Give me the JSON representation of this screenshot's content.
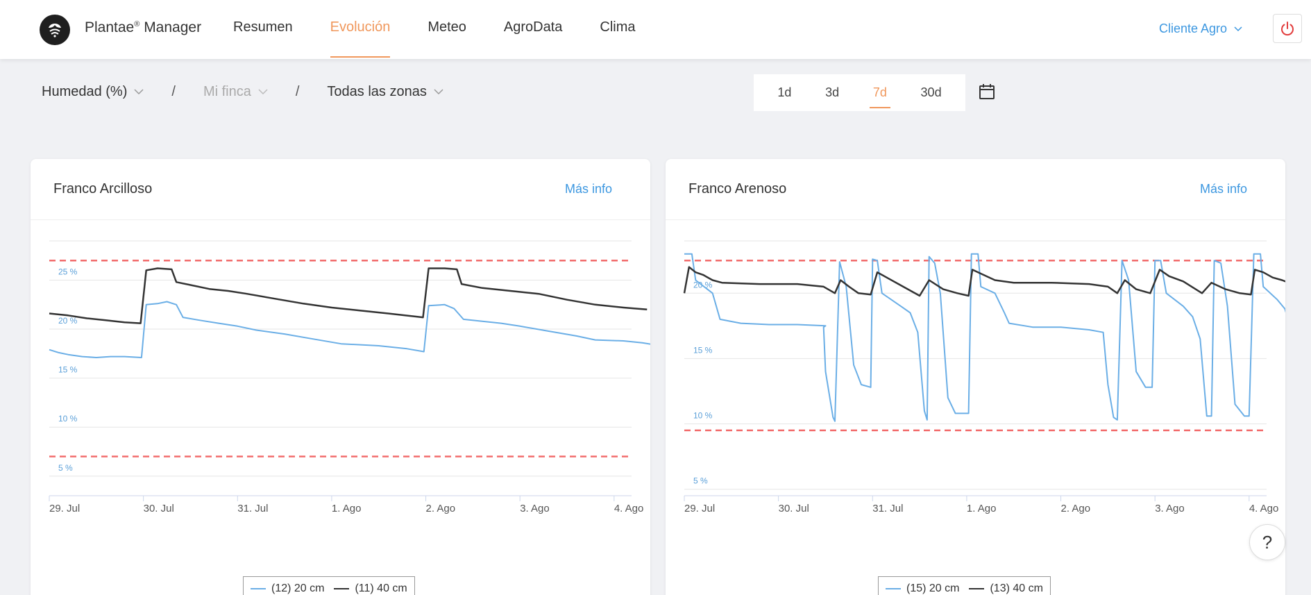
{
  "app": {
    "brand_name": "Plantae",
    "brand_mark": "®",
    "brand_suffix": "Manager",
    "client_label": "Cliente Agro",
    "help_label": "?"
  },
  "nav": {
    "items": [
      {
        "label": "Resumen",
        "active": false
      },
      {
        "label": "Evolución",
        "active": true
      },
      {
        "label": "Meteo",
        "active": false
      },
      {
        "label": "AgroData",
        "active": false
      },
      {
        "label": "Clima",
        "active": false
      }
    ]
  },
  "filters": {
    "metric": "Humedad (%)",
    "farm": "Mi finca",
    "zone": "Todas las zonas",
    "separator": "/"
  },
  "range": {
    "options": [
      "1d",
      "3d",
      "7d",
      "30d"
    ],
    "selected": "7d"
  },
  "colors": {
    "accent": "#f0975b",
    "link": "#3c97e0",
    "threshold": "#f26b6b",
    "series_light": "#6aaee6",
    "series_dark": "#333333"
  },
  "cards": [
    {
      "title": "Franco Arcilloso",
      "more_label": "Más info",
      "legend": [
        "(12) 20 cm",
        "(11) 40 cm"
      ]
    },
    {
      "title": "Franco Arenoso",
      "more_label": "Más info",
      "legend": [
        "(15) 20 cm",
        "(13) 40 cm"
      ]
    }
  ],
  "chart_data": [
    {
      "type": "line",
      "x_ticks": [
        "29. Jul",
        "30. Jul",
        "31. Jul",
        "1. Ago",
        "2. Ago",
        "3. Ago",
        "4. Ago"
      ],
      "y_ticks": [
        "5 %",
        "10 %",
        "15 %",
        "20 %",
        "25 %"
      ],
      "ylim": [
        3,
        29
      ],
      "thresholds": [
        27,
        7
      ],
      "series": [
        {
          "name": "(12) 20 cm",
          "color": "#6aaee6",
          "points": [
            [
              0.0,
              17.9
            ],
            [
              0.1,
              17.6
            ],
            [
              0.2,
              17.4
            ],
            [
              0.35,
              17.2
            ],
            [
              0.5,
              17.1
            ],
            [
              0.65,
              17.2
            ],
            [
              0.8,
              17.2
            ],
            [
              0.98,
              17.1
            ],
            [
              1.03,
              22.5
            ],
            [
              1.15,
              22.6
            ],
            [
              1.25,
              22.8
            ],
            [
              1.35,
              22.5
            ],
            [
              1.42,
              21.2
            ],
            [
              1.6,
              20.9
            ],
            [
              1.8,
              20.6
            ],
            [
              2.0,
              20.3
            ],
            [
              2.2,
              19.9
            ],
            [
              2.5,
              19.5
            ],
            [
              2.8,
              19.0
            ],
            [
              3.1,
              18.5
            ],
            [
              3.5,
              18.3
            ],
            [
              3.8,
              18.0
            ],
            [
              3.98,
              17.7
            ],
            [
              4.03,
              22.4
            ],
            [
              4.2,
              22.5
            ],
            [
              4.3,
              22.1
            ],
            [
              4.4,
              21.0
            ],
            [
              4.6,
              20.8
            ],
            [
              4.8,
              20.6
            ],
            [
              5.0,
              20.3
            ],
            [
              5.3,
              19.8
            ],
            [
              5.6,
              19.3
            ],
            [
              5.8,
              18.9
            ],
            [
              6.1,
              18.8
            ],
            [
              6.3,
              18.6
            ],
            [
              6.5,
              18.3
            ]
          ]
        },
        {
          "name": "(11) 40 cm",
          "color": "#333333",
          "points": [
            [
              0.0,
              21.6
            ],
            [
              0.2,
              21.4
            ],
            [
              0.4,
              21.1
            ],
            [
              0.6,
              20.9
            ],
            [
              0.8,
              20.7
            ],
            [
              0.97,
              20.6
            ],
            [
              1.03,
              26.0
            ],
            [
              1.15,
              26.2
            ],
            [
              1.3,
              26.1
            ],
            [
              1.35,
              24.8
            ],
            [
              1.5,
              24.5
            ],
            [
              1.7,
              24.1
            ],
            [
              1.9,
              23.9
            ],
            [
              2.1,
              23.6
            ],
            [
              2.4,
              23.1
            ],
            [
              2.7,
              22.6
            ],
            [
              3.0,
              22.2
            ],
            [
              3.3,
              21.9
            ],
            [
              3.6,
              21.6
            ],
            [
              3.97,
              21.2
            ],
            [
              4.03,
              26.2
            ],
            [
              4.2,
              26.2
            ],
            [
              4.33,
              26.1
            ],
            [
              4.38,
              24.6
            ],
            [
              4.6,
              24.2
            ],
            [
              4.9,
              23.9
            ],
            [
              5.2,
              23.6
            ],
            [
              5.5,
              23.0
            ],
            [
              5.8,
              22.5
            ],
            [
              6.1,
              22.2
            ],
            [
              6.35,
              22.0
            ]
          ]
        }
      ]
    },
    {
      "type": "line",
      "x_ticks": [
        "29. Jul",
        "30. Jul",
        "31. Jul",
        "1. Ago",
        "2. Ago",
        "3. Ago",
        "4. Ago"
      ],
      "y_ticks": [
        "5 %",
        "10 %",
        "15 %",
        "20 %"
      ],
      "ylim": [
        4.5,
        24
      ],
      "thresholds": [
        22.5,
        9.5
      ],
      "series": [
        {
          "name": "(15) 20 cm",
          "color": "#6aaee6",
          "points": [
            [
              0.0,
              23.0
            ],
            [
              0.08,
              23.0
            ],
            [
              0.12,
              21.0
            ],
            [
              0.3,
              20.0
            ],
            [
              0.38,
              18.0
            ],
            [
              0.6,
              17.7
            ],
            [
              0.9,
              17.6
            ],
            [
              1.2,
              17.6
            ],
            [
              1.5,
              17.5
            ],
            [
              1.48,
              17.4
            ],
            [
              1.5,
              14.0
            ],
            [
              1.58,
              10.5
            ],
            [
              1.6,
              10.2
            ],
            [
              1.65,
              22.4
            ],
            [
              1.72,
              20.5
            ],
            [
              1.8,
              14.5
            ],
            [
              1.88,
              13.0
            ],
            [
              1.98,
              12.8
            ],
            [
              2.0,
              22.6
            ],
            [
              2.05,
              22.5
            ],
            [
              2.1,
              20.0
            ],
            [
              2.3,
              19.0
            ],
            [
              2.4,
              18.5
            ],
            [
              2.48,
              17.0
            ],
            [
              2.55,
              11.0
            ],
            [
              2.58,
              10.3
            ],
            [
              2.6,
              22.8
            ],
            [
              2.66,
              22.3
            ],
            [
              2.72,
              20.0
            ],
            [
              2.8,
              12.0
            ],
            [
              2.88,
              10.8
            ],
            [
              3.02,
              10.8
            ],
            [
              3.05,
              23.0
            ],
            [
              3.12,
              23.0
            ],
            [
              3.15,
              20.5
            ],
            [
              3.3,
              20.0
            ],
            [
              3.4,
              18.5
            ],
            [
              3.45,
              17.7
            ],
            [
              3.7,
              17.4
            ],
            [
              4.0,
              17.4
            ],
            [
              4.3,
              17.2
            ],
            [
              4.45,
              17.0
            ],
            [
              4.5,
              13.0
            ],
            [
              4.56,
              10.5
            ],
            [
              4.6,
              10.3
            ],
            [
              4.65,
              22.5
            ],
            [
              4.72,
              21.0
            ],
            [
              4.8,
              14.0
            ],
            [
              4.9,
              12.8
            ],
            [
              4.97,
              12.8
            ],
            [
              5.0,
              22.5
            ],
            [
              5.06,
              22.5
            ],
            [
              5.12,
              20.0
            ],
            [
              5.3,
              19.0
            ],
            [
              5.4,
              18.2
            ],
            [
              5.48,
              16.5
            ],
            [
              5.55,
              10.6
            ],
            [
              5.6,
              10.6
            ],
            [
              5.63,
              22.5
            ],
            [
              5.7,
              22.3
            ],
            [
              5.77,
              19.0
            ],
            [
              5.85,
              11.5
            ],
            [
              5.95,
              10.6
            ],
            [
              6.0,
              10.6
            ],
            [
              6.05,
              23.0
            ],
            [
              6.12,
              23.0
            ],
            [
              6.15,
              20.5
            ],
            [
              6.3,
              19.5
            ],
            [
              6.38,
              18.8
            ],
            [
              6.42,
              17.8
            ]
          ]
        },
        {
          "name": "(13) 40 cm",
          "color": "#333333",
          "points": [
            [
              0.0,
              20.0
            ],
            [
              0.05,
              22.0
            ],
            [
              0.12,
              21.6
            ],
            [
              0.2,
              21.4
            ],
            [
              0.3,
              21.0
            ],
            [
              0.4,
              20.8
            ],
            [
              0.8,
              20.7
            ],
            [
              1.2,
              20.7
            ],
            [
              1.48,
              20.5
            ],
            [
              1.6,
              20.0
            ],
            [
              1.66,
              21.0
            ],
            [
              1.75,
              20.5
            ],
            [
              1.85,
              20.0
            ],
            [
              1.98,
              19.9
            ],
            [
              2.05,
              21.6
            ],
            [
              2.15,
              21.2
            ],
            [
              2.3,
              20.6
            ],
            [
              2.5,
              19.8
            ],
            [
              2.6,
              21.0
            ],
            [
              2.75,
              20.3
            ],
            [
              2.9,
              20.0
            ],
            [
              3.02,
              19.8
            ],
            [
              3.06,
              21.8
            ],
            [
              3.15,
              21.5
            ],
            [
              3.3,
              21.0
            ],
            [
              3.5,
              20.8
            ],
            [
              3.9,
              20.8
            ],
            [
              4.3,
              20.7
            ],
            [
              4.5,
              20.5
            ],
            [
              4.6,
              20.0
            ],
            [
              4.68,
              21.0
            ],
            [
              4.8,
              20.3
            ],
            [
              4.95,
              20.0
            ],
            [
              5.05,
              21.8
            ],
            [
              5.15,
              21.3
            ],
            [
              5.3,
              20.9
            ],
            [
              5.5,
              20.0
            ],
            [
              5.6,
              20.8
            ],
            [
              5.75,
              20.3
            ],
            [
              5.9,
              20.0
            ],
            [
              6.02,
              19.9
            ],
            [
              6.06,
              21.8
            ],
            [
              6.15,
              21.6
            ],
            [
              6.25,
              21.2
            ],
            [
              6.35,
              21.0
            ],
            [
              6.42,
              20.8
            ]
          ]
        }
      ]
    }
  ]
}
